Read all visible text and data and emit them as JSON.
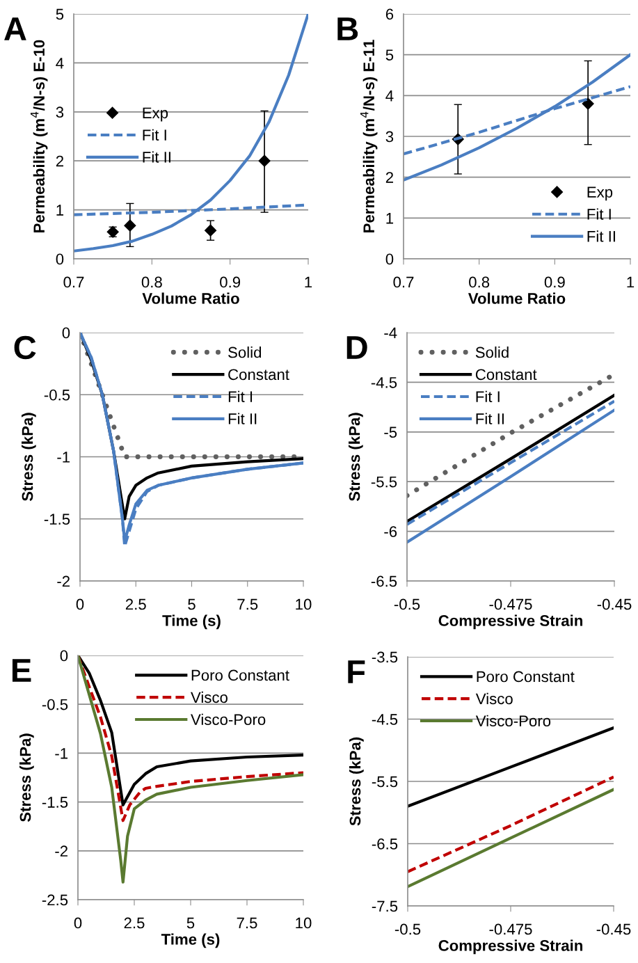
{
  "chart_data": [
    {
      "type": "line",
      "title": "A",
      "xlabel": "Volume Ratio",
      "ylabel": "Permeability (m$^{4}$/N-s) E-10",
      "xlim": [
        0.7,
        1
      ],
      "xticks": [
        0.7,
        0.8,
        0.9,
        1
      ],
      "ylim": [
        0,
        5
      ],
      "yticks": [
        0,
        1,
        2,
        3,
        4,
        5
      ],
      "grid": "y",
      "legend": "center left",
      "series": [
        {
          "name": "Exp",
          "type": "scatter",
          "color": "#000000",
          "marker": "diamond",
          "x": [
            0.75,
            0.772,
            0.875,
            0.944
          ],
          "values": [
            0.55,
            0.68,
            0.58,
            2.0
          ],
          "errors": [
            [
              0.45,
              0.65
            ],
            [
              0.25,
              1.13
            ],
            [
              0.38,
              0.78
            ],
            [
              0.95,
              3.02
            ]
          ]
        },
        {
          "name": "Fit I",
          "type": "line",
          "color": "#4a7ec2",
          "line_style": "dashed",
          "x": [
            0.7,
            0.8,
            0.9,
            1.0
          ],
          "values": [
            0.9,
            0.95,
            1.02,
            1.1
          ]
        },
        {
          "name": "Fit II",
          "type": "line",
          "color": "#4a7ec2",
          "line_style": "solid",
          "x": [
            0.7,
            0.725,
            0.75,
            0.775,
            0.8,
            0.825,
            0.85,
            0.875,
            0.9,
            0.925,
            0.95,
            0.975,
            1.0
          ],
          "values": [
            0.16,
            0.21,
            0.27,
            0.36,
            0.5,
            0.67,
            0.9,
            1.2,
            1.6,
            2.1,
            2.8,
            3.75,
            5.0
          ]
        }
      ]
    },
    {
      "type": "line",
      "title": "B",
      "xlabel": "Volume Ratio",
      "ylabel": "Permeability (m$^{4}$/N-s) E-11",
      "xlim": [
        0.7,
        1
      ],
      "xticks": [
        0.7,
        0.8,
        0.9,
        1
      ],
      "ylim": [
        0,
        6
      ],
      "yticks": [
        0,
        1,
        2,
        3,
        4,
        5,
        6
      ],
      "grid": "y",
      "legend": "lower right",
      "series": [
        {
          "name": "Exp",
          "type": "scatter",
          "color": "#000000",
          "marker": "diamond",
          "x": [
            0.772,
            0.944
          ],
          "values": [
            2.93,
            3.8
          ],
          "errors": [
            [
              2.08,
              3.78
            ],
            [
              2.8,
              4.85
            ]
          ]
        },
        {
          "name": "Fit I",
          "type": "line",
          "color": "#4a7ec2",
          "line_style": "dashed",
          "x": [
            0.7,
            0.8,
            0.9,
            1.0
          ],
          "values": [
            2.57,
            3.1,
            3.68,
            4.22
          ]
        },
        {
          "name": "Fit II",
          "type": "line",
          "color": "#4a7ec2",
          "line_style": "solid",
          "x": [
            0.7,
            0.75,
            0.8,
            0.85,
            0.9,
            0.95,
            1.0
          ],
          "values": [
            1.93,
            2.3,
            2.72,
            3.2,
            3.73,
            4.33,
            5.0
          ]
        }
      ]
    },
    {
      "type": "line",
      "title": "C",
      "xlabel": "Time (s)",
      "ylabel": "Stress (kPa)",
      "xlim": [
        0,
        10
      ],
      "xticks": [
        0,
        2.5,
        5,
        7.5,
        10
      ],
      "ylim": [
        -2,
        0
      ],
      "yticks": [
        -2,
        -1.5,
        -1,
        -0.5,
        0
      ],
      "grid": "y",
      "legend": "upper right",
      "series": [
        {
          "name": "Solid",
          "type": "line",
          "color": "#606060",
          "line_style": "dotted",
          "x": [
            0,
            2,
            10
          ],
          "values": [
            0,
            -1.0,
            -1.0
          ]
        },
        {
          "name": "Constant",
          "type": "line",
          "color": "#000000",
          "line_style": "solid",
          "x": [
            0,
            0.5,
            1,
            1.5,
            2,
            2.2,
            2.5,
            3,
            3.5,
            5,
            7.5,
            10
          ],
          "values": [
            0,
            -0.22,
            -0.5,
            -0.95,
            -1.5,
            -1.32,
            -1.23,
            -1.17,
            -1.13,
            -1.075,
            -1.04,
            -1.015
          ]
        },
        {
          "name": "Fit I",
          "type": "line",
          "color": "#4a7ec2",
          "line_style": "dashed",
          "x": [
            0,
            0.5,
            1,
            1.5,
            1.9,
            2,
            2.2,
            2.5,
            3,
            3.5,
            5,
            7.5,
            10
          ],
          "values": [
            0,
            -0.2,
            -0.5,
            -0.95,
            -1.5,
            -1.72,
            -1.6,
            -1.42,
            -1.28,
            -1.23,
            -1.17,
            -1.1,
            -1.05
          ]
        },
        {
          "name": "Fit II",
          "type": "line",
          "color": "#4a7ec2",
          "line_style": "solid",
          "x": [
            0,
            0.5,
            1,
            1.5,
            1.9,
            2,
            2.2,
            2.5,
            3,
            3.5,
            5,
            7.5,
            10
          ],
          "values": [
            0,
            -0.2,
            -0.5,
            -0.95,
            -1.5,
            -1.68,
            -1.55,
            -1.38,
            -1.27,
            -1.23,
            -1.17,
            -1.1,
            -1.05
          ]
        }
      ]
    },
    {
      "type": "line",
      "title": "D",
      "xlabel": "Compressive Strain",
      "ylabel": "Stress (kPa)",
      "xlim": [
        -0.5,
        -0.45
      ],
      "xticks": [
        -0.5,
        -0.475,
        -0.45
      ],
      "ylim": [
        -6.5,
        -4
      ],
      "yticks": [
        -6.5,
        -6,
        -5.5,
        -5,
        -4.5,
        -4
      ],
      "grid": "y",
      "legend": "upper left",
      "series": [
        {
          "name": "Solid",
          "type": "line",
          "color": "#606060",
          "line_style": "dotted",
          "x": [
            -0.5,
            -0.475,
            -0.45
          ],
          "values": [
            -5.64,
            -5.01,
            -4.42
          ]
        },
        {
          "name": "Constant",
          "type": "line",
          "color": "#000000",
          "line_style": "solid",
          "x": [
            -0.5,
            -0.475,
            -0.45
          ],
          "values": [
            -5.9,
            -5.27,
            -4.63
          ]
        },
        {
          "name": "Fit I",
          "type": "line",
          "color": "#4a7ec2",
          "line_style": "dashed",
          "x": [
            -0.5,
            -0.475,
            -0.45
          ],
          "values": [
            -5.93,
            -5.31,
            -4.69
          ]
        },
        {
          "name": "Fit II",
          "type": "line",
          "color": "#4a7ec2",
          "line_style": "solid",
          "x": [
            -0.5,
            -0.475,
            -0.45
          ],
          "values": [
            -6.11,
            -5.45,
            -4.78
          ]
        }
      ]
    },
    {
      "type": "line",
      "title": "E",
      "xlabel": "Time (s)",
      "ylabel": "Stress (kPa)",
      "xlim": [
        0,
        10
      ],
      "xticks": [
        0,
        2.5,
        5,
        7.5,
        10
      ],
      "ylim": [
        -2.5,
        0
      ],
      "yticks": [
        -2.5,
        -2,
        -1.5,
        -1,
        -0.5,
        0
      ],
      "grid": "y",
      "legend": "upper right",
      "series": [
        {
          "name": "Poro Constant",
          "type": "line",
          "color": "#000000",
          "line_style": "solid",
          "x": [
            0,
            0.5,
            1,
            1.5,
            2,
            2.5,
            3,
            3.5,
            5,
            7.5,
            10
          ],
          "values": [
            0,
            -0.18,
            -0.46,
            -0.79,
            -1.53,
            -1.32,
            -1.21,
            -1.14,
            -1.08,
            -1.04,
            -1.02
          ]
        },
        {
          "name": "Visco",
          "type": "line",
          "color": "#c00000",
          "line_style": "dashed",
          "x": [
            0,
            0.5,
            1,
            1.5,
            2,
            2.3,
            2.75,
            3,
            3.5,
            5,
            7.5,
            10
          ],
          "values": [
            0,
            -0.32,
            -0.63,
            -1.03,
            -1.69,
            -1.53,
            -1.4,
            -1.36,
            -1.34,
            -1.29,
            -1.24,
            -1.2
          ]
        },
        {
          "name": "Visco-Poro",
          "type": "line",
          "color": "#5a7a30",
          "line_style": "solid",
          "x": [
            0,
            0.5,
            1,
            1.5,
            1.9,
            2,
            2.2,
            2.5,
            3,
            3.5,
            5,
            7.5,
            10
          ],
          "values": [
            0,
            -0.4,
            -0.8,
            -1.35,
            -2.1,
            -2.32,
            -1.85,
            -1.57,
            -1.48,
            -1.42,
            -1.35,
            -1.28,
            -1.22
          ]
        }
      ]
    },
    {
      "type": "line",
      "title": "F",
      "xlabel": "Compressive Strain",
      "ylabel": "Stress (kPa)",
      "xlim": [
        -0.5,
        -0.45
      ],
      "xticks": [
        -0.5,
        -0.475,
        -0.45
      ],
      "ylim": [
        -7.5,
        -3.5
      ],
      "yticks": [
        -7.5,
        -6.5,
        -5.5,
        -4.5,
        -3.5
      ],
      "grid": "y",
      "legend": "upper left",
      "series": [
        {
          "name": "Poro Constant",
          "type": "line",
          "color": "#000000",
          "line_style": "solid",
          "x": [
            -0.5,
            -0.475,
            -0.45
          ],
          "values": [
            -5.9,
            -5.27,
            -4.64
          ]
        },
        {
          "name": "Visco",
          "type": "line",
          "color": "#c00000",
          "line_style": "dashed",
          "x": [
            -0.5,
            -0.475,
            -0.45
          ],
          "values": [
            -6.95,
            -6.21,
            -5.43
          ]
        },
        {
          "name": "Visco-Poro",
          "type": "line",
          "color": "#5a7a30",
          "line_style": "solid",
          "x": [
            -0.5,
            -0.475,
            -0.45
          ],
          "values": [
            -7.19,
            -6.41,
            -5.63
          ]
        }
      ]
    }
  ]
}
